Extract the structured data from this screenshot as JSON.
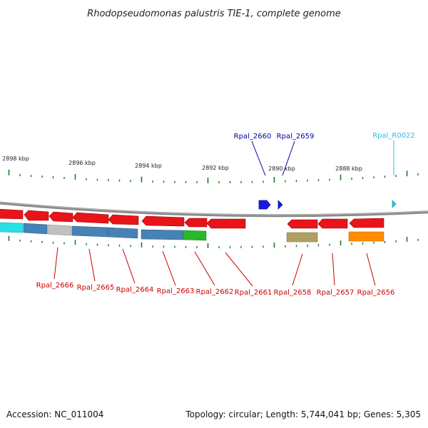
{
  "title": "Rhodopseudomonas palustris TIE-1, complete genome",
  "accession": "Accession: NC_011004",
  "topology": "Topology: circular; Length: 5,744,041 bp; Genes: 5,305",
  "colors": {
    "red": "#e8141a",
    "blue": "#1a1ae6",
    "cyan": "#29c4e6",
    "steel": "#4682b4",
    "lightgray": "#c0c0c0",
    "green": "#2ab82a",
    "olive": "#b0a060",
    "orange": "#ff8c00",
    "tick": "#1e7a1e",
    "backbone": "#888888",
    "label_red": "#cc0000",
    "label_blue": "#0000aa",
    "label_cyan": "#33bbdd"
  },
  "kbp_labels": [
    "2898 kbp",
    "2896 kbp",
    "2894 kbp",
    "2892 kbp",
    "2890 kbp",
    "2888 kbp"
  ],
  "gene_labels": [
    {
      "text": "Rpal_2666",
      "color": "label_red"
    },
    {
      "text": "Rpal_2665",
      "color": "label_red"
    },
    {
      "text": "Rpal_2664",
      "color": "label_red"
    },
    {
      "text": "Rpal_2663",
      "color": "label_red"
    },
    {
      "text": "Rpal_2662",
      "color": "label_red"
    },
    {
      "text": "Rpal_2661",
      "color": "label_red"
    },
    {
      "text": "Rpal_2658",
      "color": "label_red"
    },
    {
      "text": "Rpal_2657",
      "color": "label_red"
    },
    {
      "text": "Rpal_2656",
      "color": "label_red"
    },
    {
      "text": "Rpal_2660",
      "color": "label_blue"
    },
    {
      "text": "Rpal_2659",
      "color": "label_blue"
    },
    {
      "text": "Rpal_R0022",
      "color": "label_cyan"
    }
  ]
}
